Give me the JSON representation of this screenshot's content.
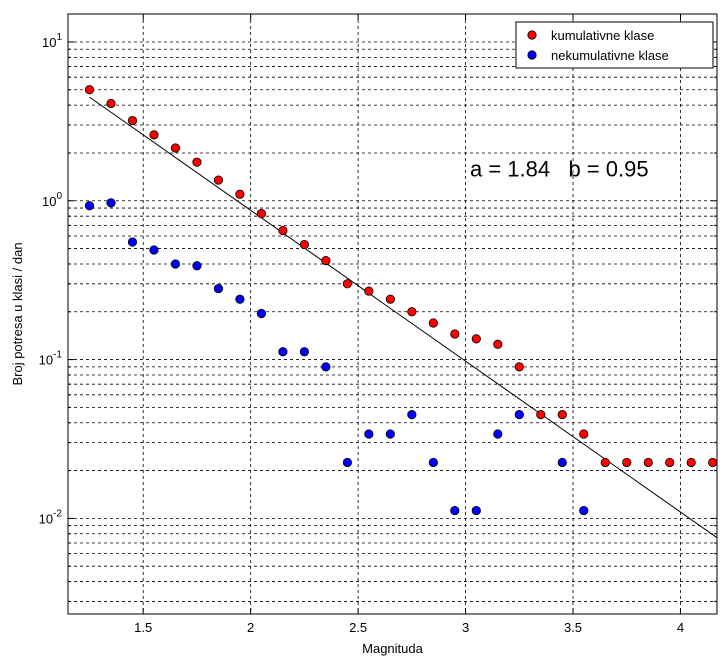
{
  "chart_data": {
    "type": "scatter",
    "title": "",
    "xlabel": "Magnituda",
    "ylabel": "Broj potresa u klasi / dan",
    "xlim": [
      1.15,
      4.17
    ],
    "ylim": [
      0.0025,
      15
    ],
    "yscale": "log",
    "grid": "dashed",
    "legend_position": "top-right",
    "x_ticks": [
      1.5,
      2,
      2.5,
      3,
      3.5,
      4
    ],
    "x_tick_labels": [
      "1.5",
      "2",
      "2.5",
      "3",
      "3.5",
      "4"
    ],
    "y_ticks": [
      {
        "value": 10,
        "base": "10",
        "exp": "1"
      },
      {
        "value": 1,
        "base": "10",
        "exp": "0"
      },
      {
        "value": 0.1,
        "base": "10",
        "exp": "-1"
      },
      {
        "value": 0.01,
        "base": "10",
        "exp": "-2"
      }
    ],
    "series": [
      {
        "name": "kumulativne klase",
        "color": "#ff0000",
        "x": [
          1.25,
          1.35,
          1.45,
          1.55,
          1.65,
          1.75,
          1.85,
          1.95,
          2.05,
          2.15,
          2.25,
          2.35,
          2.45,
          2.55,
          2.65,
          2.75,
          2.85,
          2.95,
          3.05,
          3.15,
          3.25,
          3.35,
          3.45,
          3.55,
          3.65,
          3.75,
          3.85,
          3.95,
          4.05,
          4.15
        ],
        "y": [
          5.0,
          4.1,
          3.2,
          2.6,
          2.15,
          1.75,
          1.35,
          1.1,
          0.83,
          0.65,
          0.53,
          0.42,
          0.3,
          0.27,
          0.24,
          0.2,
          0.17,
          0.145,
          0.135,
          0.125,
          0.09,
          0.045,
          0.045,
          0.034,
          0.0225,
          0.0225,
          0.0225,
          0.0225,
          0.0225,
          0.0225
        ]
      },
      {
        "name": "nekumulativne klase",
        "color": "#0000ff",
        "x": [
          1.25,
          1.35,
          1.45,
          1.55,
          1.65,
          1.75,
          1.85,
          1.95,
          2.05,
          2.15,
          2.25,
          2.35,
          2.45,
          2.55,
          2.65,
          2.75,
          2.85,
          2.95,
          3.05,
          3.15,
          3.25,
          3.45,
          3.55
        ],
        "y": [
          0.93,
          0.97,
          0.55,
          0.49,
          0.4,
          0.39,
          0.28,
          0.24,
          0.195,
          0.112,
          0.112,
          0.09,
          0.0225,
          0.034,
          0.034,
          0.045,
          0.0225,
          0.0112,
          0.0112,
          0.034,
          0.045,
          0.0225,
          0.0112
        ]
      }
    ],
    "fit_line": {
      "color": "#000000",
      "a": 1.84,
      "b": 0.95,
      "x_range": [
        1.25,
        4.17
      ]
    },
    "annotation": {
      "text": "a = 1.84   b = 0.95",
      "x": 3.0,
      "y": 1.6
    }
  }
}
